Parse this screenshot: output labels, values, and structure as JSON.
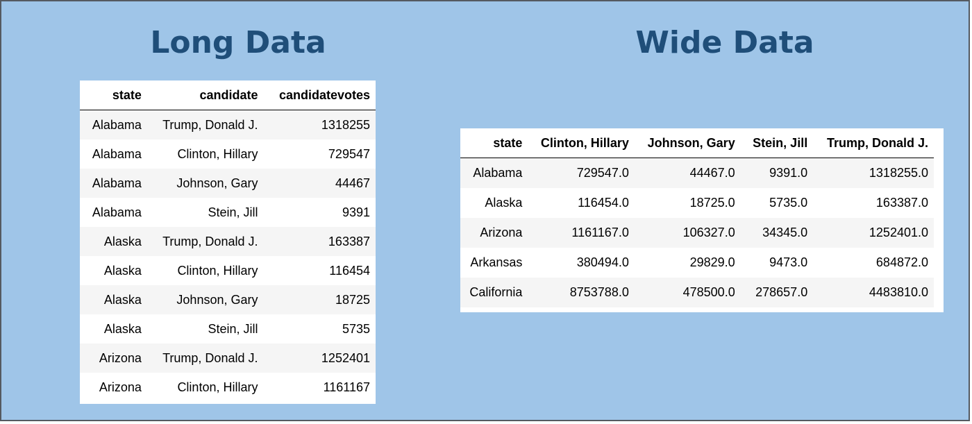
{
  "long": {
    "title": "Long Data",
    "headers": [
      "state",
      "candidate",
      "candidatevotes"
    ],
    "rows": [
      [
        "Alabama",
        "Trump, Donald J.",
        "1318255"
      ],
      [
        "Alabama",
        "Clinton, Hillary",
        "729547"
      ],
      [
        "Alabama",
        "Johnson, Gary",
        "44467"
      ],
      [
        "Alabama",
        "Stein, Jill",
        "9391"
      ],
      [
        "Alaska",
        "Trump, Donald J.",
        "163387"
      ],
      [
        "Alaska",
        "Clinton, Hillary",
        "116454"
      ],
      [
        "Alaska",
        "Johnson, Gary",
        "18725"
      ],
      [
        "Alaska",
        "Stein, Jill",
        "5735"
      ],
      [
        "Arizona",
        "Trump, Donald J.",
        "1252401"
      ],
      [
        "Arizona",
        "Clinton, Hillary",
        "1161167"
      ]
    ]
  },
  "wide": {
    "title": "Wide Data",
    "headers": [
      "state",
      "Clinton, Hillary",
      "Johnson, Gary",
      "Stein, Jill",
      "Trump, Donald J."
    ],
    "rows": [
      [
        "Alabama",
        "729547.0",
        "44467.0",
        "9391.0",
        "1318255.0"
      ],
      [
        "Alaska",
        "116454.0",
        "18725.0",
        "5735.0",
        "163387.0"
      ],
      [
        "Arizona",
        "1161167.0",
        "106327.0",
        "34345.0",
        "1252401.0"
      ],
      [
        "Arkansas",
        "380494.0",
        "29829.0",
        "9473.0",
        "684872.0"
      ],
      [
        "California",
        "8753788.0",
        "478500.0",
        "278657.0",
        "4483810.0"
      ]
    ]
  },
  "colors": {
    "background": "#9fc5e8",
    "title": "#1f4e79",
    "border": "#555a60"
  }
}
